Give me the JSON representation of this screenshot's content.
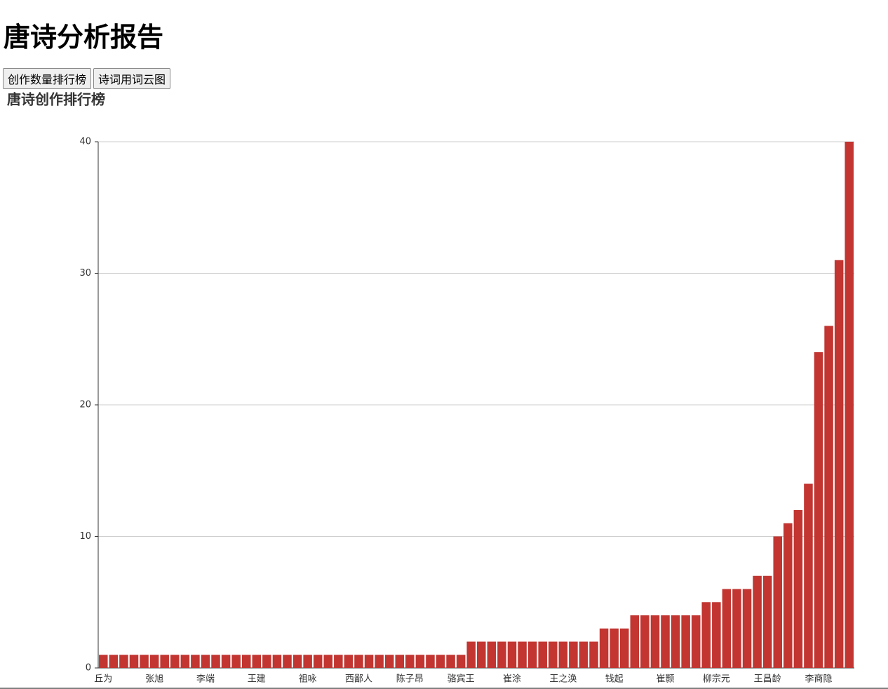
{
  "header": {
    "title": "唐诗分析报告"
  },
  "buttons": [
    "创作数量排行榜",
    "诗词用词云图"
  ],
  "chart_data": {
    "type": "bar",
    "title": "唐诗创作排行榜",
    "color": "#c23531",
    "categories": [
      "丘为",
      null,
      null,
      null,
      null,
      "张旭",
      null,
      null,
      null,
      null,
      "李端",
      null,
      null,
      null,
      null,
      "王建",
      null,
      null,
      null,
      null,
      "祖咏",
      null,
      null,
      null,
      null,
      "西鄙人",
      null,
      null,
      null,
      null,
      "陈子昂",
      null,
      null,
      null,
      null,
      "骆宾王",
      null,
      null,
      null,
      null,
      "崔涂",
      null,
      null,
      null,
      null,
      "王之涣",
      null,
      null,
      null,
      null,
      "钱起",
      null,
      null,
      null,
      null,
      "崔颢",
      null,
      null,
      null,
      null,
      "柳宗元",
      null,
      null,
      null,
      null,
      "王昌龄",
      null,
      null,
      null,
      null,
      "李商隐",
      null,
      null,
      null
    ],
    "values": [
      1,
      1,
      1,
      1,
      1,
      1,
      1,
      1,
      1,
      1,
      1,
      1,
      1,
      1,
      1,
      1,
      1,
      1,
      1,
      1,
      1,
      1,
      1,
      1,
      1,
      1,
      1,
      1,
      1,
      1,
      1,
      1,
      1,
      1,
      1,
      1,
      2,
      2,
      2,
      2,
      2,
      2,
      2,
      2,
      2,
      2,
      2,
      2,
      2,
      3,
      3,
      3,
      4,
      4,
      4,
      4,
      4,
      4,
      4,
      5,
      5,
      6,
      6,
      6,
      7,
      7,
      10,
      11,
      12,
      14,
      24,
      26,
      31,
      40
    ],
    "ylim": [
      0,
      40
    ],
    "yticks": [
      0,
      10,
      20,
      30,
      40
    ],
    "grid": true
  }
}
